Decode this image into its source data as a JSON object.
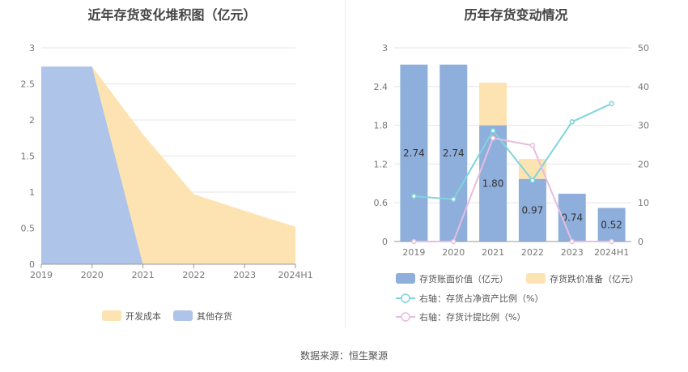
{
  "chart_data": [
    {
      "type": "area",
      "stacked": true,
      "title": "近年存货变化堆积图（亿元）",
      "categories": [
        "2019",
        "2020",
        "2021",
        "2022",
        "2023",
        "2024H1"
      ],
      "ylim": [
        0,
        3
      ],
      "yticks": [
        "0",
        "0.5",
        "1",
        "1.5",
        "2",
        "2.5",
        "3"
      ],
      "ytick_values": [
        0,
        0.5,
        1,
        1.5,
        2,
        2.5,
        3
      ],
      "legend_position": "bottom",
      "series": [
        {
          "name": "开发成本",
          "color": "#fde3b1",
          "values": [
            0,
            0,
            1.8,
            0.97,
            0.74,
            0.52
          ]
        },
        {
          "name": "其他存货",
          "color": "#aec4e8",
          "values": [
            2.74,
            2.74,
            0,
            0,
            0,
            0
          ]
        }
      ]
    },
    {
      "type": "bar",
      "title": "历年存货变动情况",
      "categories": [
        "2019",
        "2020",
        "2021",
        "2022",
        "2023",
        "2024H1"
      ],
      "ylim": [
        0,
        3
      ],
      "yticks": [
        "0",
        "0.6",
        "1.2",
        "1.8",
        "2.4",
        "3"
      ],
      "ytick_values": [
        0,
        0.6,
        1.2,
        1.8,
        2.4,
        3
      ],
      "y2lim": [
        0,
        50
      ],
      "y2ticks": [
        "0",
        "10",
        "20",
        "30",
        "40",
        "50"
      ],
      "y2tick_values": [
        0,
        10,
        20,
        30,
        40,
        50
      ],
      "legend_position": "bottom",
      "series": [
        {
          "name": "存货账面价值（亿元）",
          "kind": "bar",
          "color": "#8eaedc",
          "values": [
            2.74,
            2.74,
            1.8,
            0.97,
            0.74,
            0.52
          ],
          "labels": [
            "2.74",
            "2.74",
            "1.80",
            "0.97",
            "0.74",
            "0.52"
          ]
        },
        {
          "name": "存货跌价准备（亿元）",
          "kind": "bar-stack",
          "color": "#fde3b1",
          "values": [
            0,
            0,
            0.66,
            0.31,
            0,
            0
          ]
        },
        {
          "name": "右轴：存货占净资产比例（%）",
          "kind": "line",
          "color": "#7fd5db",
          "values": [
            11.7,
            10.9,
            28.6,
            15.8,
            30.9,
            35.6
          ]
        },
        {
          "name": "右轴：存货计提比例（%）",
          "kind": "line",
          "color": "#e7bde0",
          "values": [
            0,
            0,
            26.7,
            24.8,
            0,
            0
          ]
        }
      ]
    }
  ],
  "source": "数据来源：恒生聚源"
}
